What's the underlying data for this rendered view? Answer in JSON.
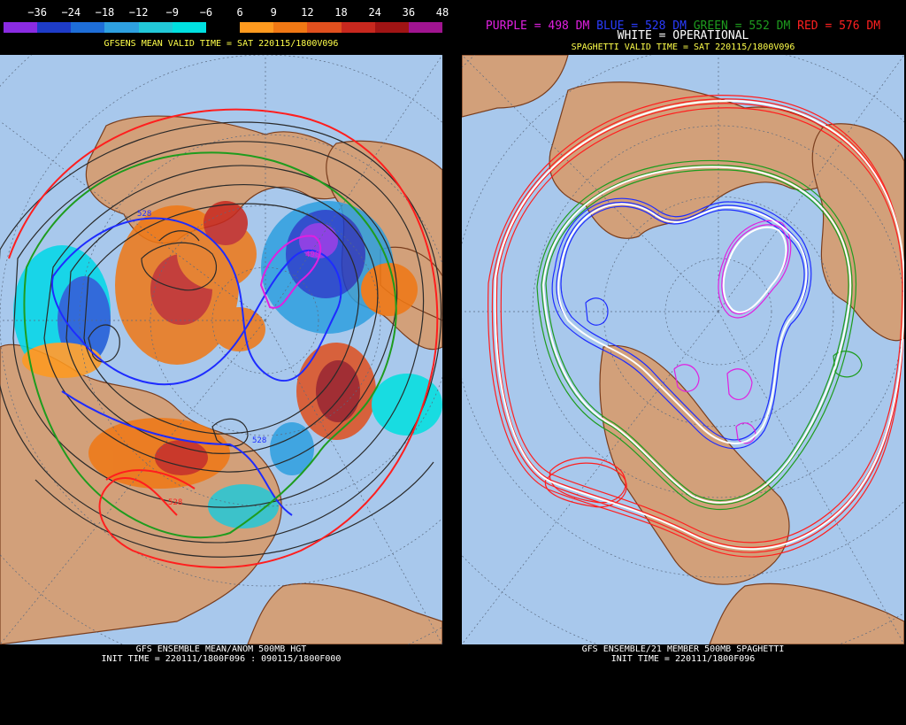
{
  "left": {
    "legend": {
      "labels": [
        "−36",
        "−24",
        "−18",
        "−12",
        "−9",
        "−6",
        "6",
        "9",
        "12",
        "18",
        "24",
        "36",
        "48"
      ],
      "colors": [
        "#8a2be2",
        "#1e3cc8",
        "#1e6ed8",
        "#2ea0e0",
        "#22c8d8",
        "#00e0e0",
        "#000000",
        "#ff9a1e",
        "#f07814",
        "#e0501e",
        "#c8281e",
        "#a01414",
        "#a01490"
      ]
    },
    "subtitle": "GFSENS MEAN VALID TIME = SAT 220115/1800V096",
    "contour_labels": [
      "528",
      "498",
      "528",
      "528"
    ],
    "caption_line1": "GFS ENSEMBLE MEAN/ANOM 500MB HGT",
    "caption_line2": "INIT TIME = 220111/1800F096 : 090115/1800F000"
  },
  "right": {
    "key_purple": "PURPLE = 498 DM",
    "key_blue": "BLUE = 528 DM",
    "key_green": "GREEN = 552 DM",
    "key_red": "RED = 576 DM",
    "key_white": "WHITE = OPERATIONAL",
    "subtitle": "SPAGHETTI VALID TIME = SAT 220115/1800V096",
    "caption_line1": "GFS ENSEMBLE/21 MEMBER 500MB SPAGHETTI",
    "caption_line2": "INIT TIME = 220111/1800F096"
  },
  "colors": {
    "ocean": "#a8c8ec",
    "land": "#d2a07a",
    "coast": "#7a3e1e",
    "grid": "#5a6a80",
    "purple": "#e020e0",
    "blue": "#1e2cff",
    "green": "#1e9c1e",
    "red": "#ff1e1e",
    "white": "#ffffff",
    "mean_contour": "#2a2a2a"
  }
}
